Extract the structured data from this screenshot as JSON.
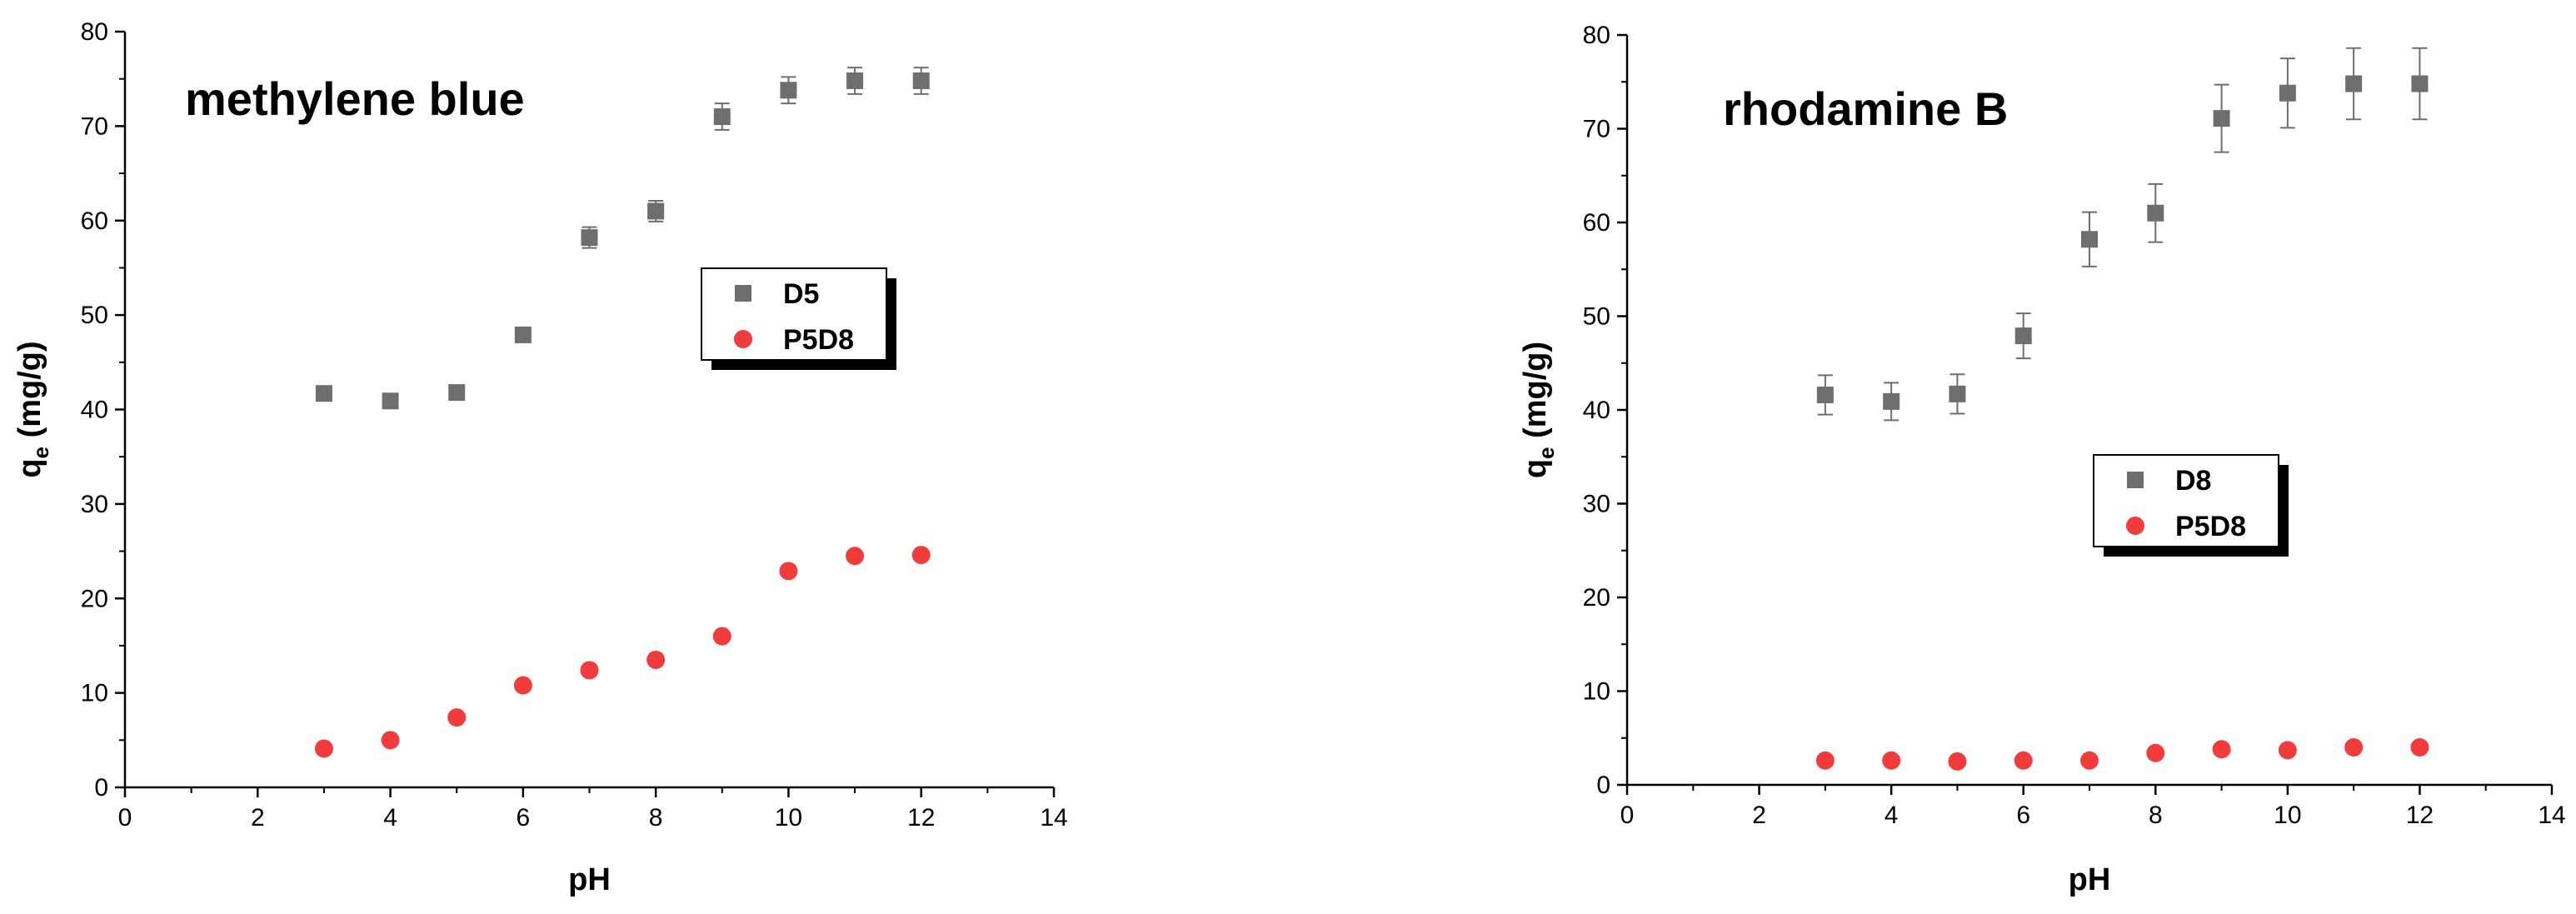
{
  "chart_data": [
    {
      "type": "scatter",
      "title": "methylene blue",
      "xlabel": "pH",
      "ylabel": {
        "main": "q",
        "sub": "e",
        "unit": " (mg/g)"
      },
      "xlim": [
        0,
        14
      ],
      "ylim": [
        0,
        80
      ],
      "xticks": [
        0,
        2,
        4,
        6,
        8,
        10,
        12,
        14
      ],
      "yticks": [
        0,
        10,
        20,
        30,
        40,
        50,
        60,
        70,
        80
      ],
      "grid": false,
      "legend_position": "center-right",
      "series": [
        {
          "name": "D5",
          "marker": "square",
          "color": "#6e6e6e",
          "points": [
            {
              "x": 3,
              "y": 41.7,
              "err": 0.5
            },
            {
              "x": 4,
              "y": 40.9,
              "err": 0.5
            },
            {
              "x": 5,
              "y": 41.8,
              "err": 0.5
            },
            {
              "x": 6,
              "y": 47.9,
              "err": 0.6
            },
            {
              "x": 7,
              "y": 58.2,
              "err": 1.1
            },
            {
              "x": 8,
              "y": 61.0,
              "err": 1.1
            },
            {
              "x": 9,
              "y": 71.0,
              "err": 1.4
            },
            {
              "x": 10,
              "y": 73.8,
              "err": 1.4
            },
            {
              "x": 11,
              "y": 74.8,
              "err": 1.4
            },
            {
              "x": 12,
              "y": 74.8,
              "err": 1.4
            }
          ]
        },
        {
          "name": "P5D8",
          "marker": "circle",
          "color": "#f23c3c",
          "points": [
            {
              "x": 3,
              "y": 4.1
            },
            {
              "x": 4,
              "y": 5.0
            },
            {
              "x": 5,
              "y": 7.4
            },
            {
              "x": 6,
              "y": 10.8
            },
            {
              "x": 7,
              "y": 12.4
            },
            {
              "x": 8,
              "y": 13.5
            },
            {
              "x": 9,
              "y": 16.0
            },
            {
              "x": 10,
              "y": 22.9
            },
            {
              "x": 11,
              "y": 24.5
            },
            {
              "x": 12,
              "y": 24.6
            }
          ]
        }
      ]
    },
    {
      "type": "scatter",
      "title": "rhodamine B",
      "xlabel": "pH",
      "ylabel": {
        "main": "q",
        "sub": "e",
        "unit": " (mg/g)"
      },
      "xlim": [
        0,
        14
      ],
      "ylim": [
        0,
        80
      ],
      "xticks": [
        0,
        2,
        4,
        6,
        8,
        10,
        12,
        14
      ],
      "yticks": [
        0,
        10,
        20,
        30,
        40,
        50,
        60,
        70,
        80
      ],
      "grid": false,
      "legend_position": "center-right",
      "series": [
        {
          "name": "D8",
          "marker": "square",
          "color": "#6e6e6e",
          "points": [
            {
              "x": 3,
              "y": 41.6,
              "err": 2.1
            },
            {
              "x": 4,
              "y": 40.9,
              "err": 2.0
            },
            {
              "x": 5,
              "y": 41.7,
              "err": 2.1
            },
            {
              "x": 6,
              "y": 47.9,
              "err": 2.4
            },
            {
              "x": 7,
              "y": 58.2,
              "err": 2.9
            },
            {
              "x": 8,
              "y": 61.0,
              "err": 3.1
            },
            {
              "x": 9,
              "y": 71.1,
              "err": 3.6
            },
            {
              "x": 10,
              "y": 73.8,
              "err": 3.7
            },
            {
              "x": 11,
              "y": 74.8,
              "err": 3.8
            },
            {
              "x": 12,
              "y": 74.8,
              "err": 3.8
            }
          ]
        },
        {
          "name": "P5D8",
          "marker": "circle",
          "color": "#f23c3c",
          "points": [
            {
              "x": 3,
              "y": 2.6
            },
            {
              "x": 4,
              "y": 2.6
            },
            {
              "x": 5,
              "y": 2.5
            },
            {
              "x": 6,
              "y": 2.6
            },
            {
              "x": 7,
              "y": 2.6
            },
            {
              "x": 8,
              "y": 3.4
            },
            {
              "x": 9,
              "y": 3.8
            },
            {
              "x": 10,
              "y": 3.7
            },
            {
              "x": 11,
              "y": 4.0
            },
            {
              "x": 12,
              "y": 4.0
            }
          ]
        }
      ]
    }
  ]
}
